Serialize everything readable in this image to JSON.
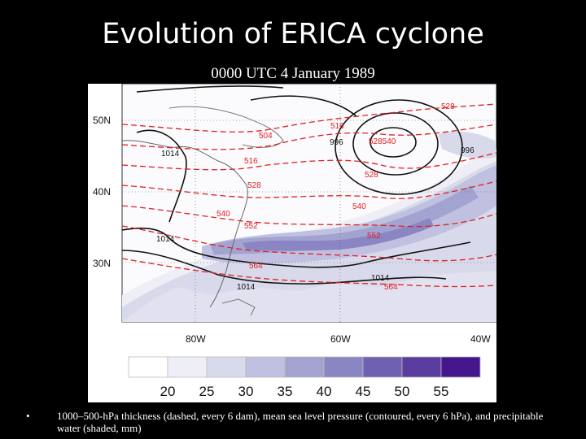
{
  "title": "Evolution of ERICA cyclone",
  "subtitle": "0000 UTC 4 January 1989",
  "map": {
    "lat_labels": [
      "50N",
      "40N",
      "30N"
    ],
    "lon_labels": [
      "80W",
      "60W",
      "40W"
    ],
    "thickness_labels": [
      "528",
      "516",
      "504",
      "516",
      "528",
      "528",
      "540",
      "540",
      "552",
      "552",
      "564",
      "564",
      "528540"
    ],
    "pressure_labels": [
      "1014",
      "996",
      "996",
      "1014",
      "1014",
      "1014"
    ],
    "colors": {
      "thickness": "#e02020",
      "pressure": "#111111"
    }
  },
  "legend": {
    "values": [
      "20",
      "25",
      "30",
      "35",
      "40",
      "45",
      "50",
      "55"
    ],
    "colors": [
      "#ffffff",
      "#eeeef6",
      "#d9d9ec",
      "#c0c0e0",
      "#a3a3d2",
      "#8a86c4",
      "#7060b2",
      "#5a3d9e",
      "#44188c"
    ]
  },
  "caption": {
    "bullet": "•",
    "text": "1000–500-hPa thickness (dashed, every 6 dam), mean sea level pressure (contoured, every 6 hPa), and precipitable water (shaded, mm)"
  }
}
